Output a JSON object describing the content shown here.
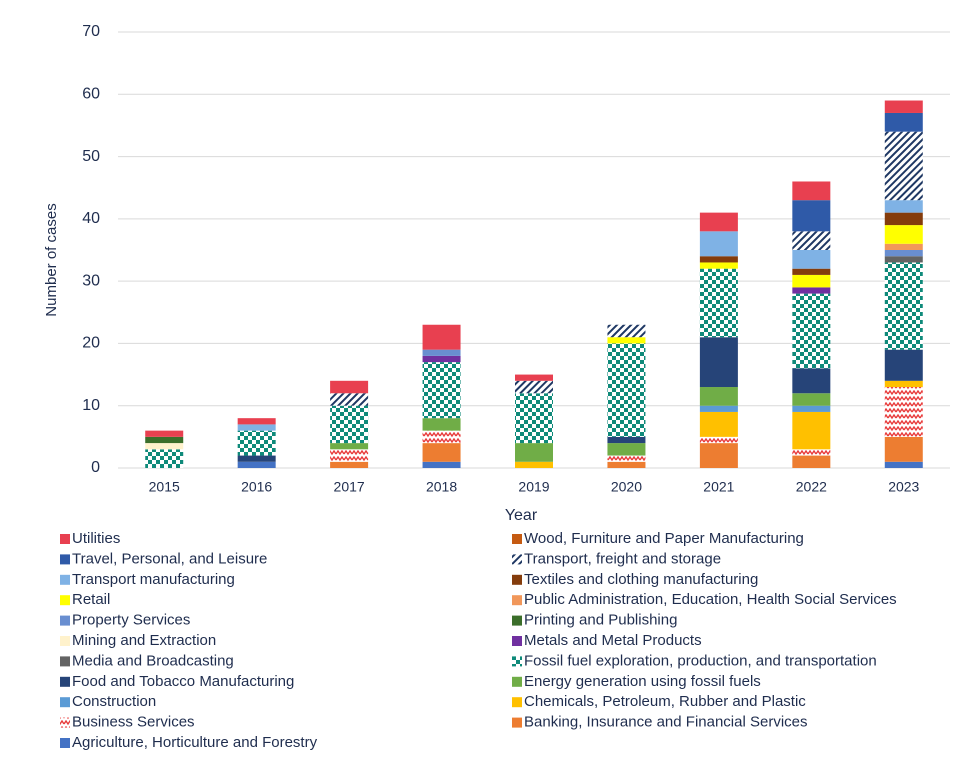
{
  "chart_data": {
    "type": "stacked_bar",
    "x_label": "Year",
    "y_label": "Number of cases",
    "categories": [
      "2015",
      "2016",
      "2017",
      "2018",
      "2019",
      "2020",
      "2021",
      "2022",
      "2023"
    ],
    "ylim": [
      0,
      70
    ],
    "yticks": [
      0,
      10,
      20,
      30,
      40,
      50,
      60,
      70
    ],
    "grid": true,
    "series": [
      {
        "name": "Agriculture, Horticulture and Forestry",
        "color": "#4472c4",
        "values": [
          0,
          1,
          0,
          1,
          0,
          0,
          0,
          0,
          1
        ]
      },
      {
        "name": "Banking, Insurance and Financial Services",
        "color": "#ed7d31",
        "values": [
          0,
          0,
          1,
          3,
          0,
          1,
          4,
          2,
          4
        ]
      },
      {
        "name": "Business Services",
        "color": "#e83a3a",
        "pattern": "zigzag",
        "values": [
          0,
          0,
          2,
          2,
          0,
          1,
          1,
          1,
          8
        ]
      },
      {
        "name": "Chemicals, Petroleum, Rubber and Plastic",
        "color": "#ffc000",
        "values": [
          0,
          0,
          0,
          0,
          1,
          0,
          4,
          6,
          1
        ]
      },
      {
        "name": "Construction",
        "color": "#5b9bd5",
        "values": [
          0,
          0,
          0,
          0,
          0,
          0,
          1,
          1,
          0
        ]
      },
      {
        "name": "Energy generation using fossil fuels",
        "color": "#70ad47",
        "values": [
          0,
          0,
          1,
          2,
          3,
          2,
          3,
          2,
          0
        ]
      },
      {
        "name": "Food and Tobacco Manufacturing",
        "color": "#264478",
        "values": [
          0,
          1,
          0,
          0,
          0,
          1,
          8,
          4,
          5
        ]
      },
      {
        "name": "Fossil fuel exploration, production, and transportation",
        "color": "#0f8a7a",
        "pattern": "checker",
        "values": [
          3,
          4,
          6,
          9,
          8,
          15,
          11,
          12,
          14
        ]
      },
      {
        "name": "Media and Broadcasting",
        "color": "#636363",
        "values": [
          0,
          0,
          0,
          0,
          0,
          0,
          0,
          0,
          1
        ]
      },
      {
        "name": "Metals and Metal Products",
        "color": "#7030a0",
        "values": [
          0,
          0,
          0,
          1,
          0,
          0,
          0,
          1,
          0
        ]
      },
      {
        "name": "Mining and Extraction",
        "color": "#fff2cc",
        "values": [
          1,
          0,
          0,
          0,
          0,
          0,
          0,
          0,
          0
        ]
      },
      {
        "name": "Printing and Publishing",
        "color": "#3b6e2a",
        "values": [
          1,
          0,
          0,
          0,
          0,
          0,
          0,
          0,
          0
        ]
      },
      {
        "name": "Property Services",
        "color": "#698ed0",
        "values": [
          0,
          0,
          0,
          1,
          0,
          0,
          0,
          0,
          1
        ]
      },
      {
        "name": "Public Administration, Education, Health Social Services",
        "color": "#f1975a",
        "values": [
          0,
          0,
          0,
          0,
          0,
          0,
          0,
          0,
          1
        ]
      },
      {
        "name": "Retail",
        "color": "#ffff00",
        "values": [
          0,
          0,
          0,
          0,
          0,
          1,
          1,
          2,
          3
        ]
      },
      {
        "name": "Textiles and clothing manufacturing",
        "color": "#843c0c",
        "values": [
          0,
          0,
          0,
          0,
          0,
          0,
          1,
          1,
          2
        ]
      },
      {
        "name": "Transport manufacturing",
        "color": "#7fb2e5",
        "values": [
          0,
          1,
          0,
          0,
          0,
          0,
          4,
          3,
          2
        ]
      },
      {
        "name": "Transport, freight and storage",
        "color": "#1f3864",
        "pattern": "hatch",
        "values": [
          0,
          0,
          2,
          0,
          2,
          2,
          0,
          3,
          11
        ]
      },
      {
        "name": "Travel, Personal, and Leisure",
        "color": "#2f5aa8",
        "values": [
          0,
          0,
          0,
          0,
          0,
          0,
          0,
          5,
          3
        ]
      },
      {
        "name": "Wood, Furniture and Paper Manufacturing",
        "color": "#c55a11",
        "values": [
          0,
          0,
          0,
          0,
          0,
          0,
          0,
          0,
          0
        ]
      },
      {
        "name": "Utilities",
        "color": "#e84050",
        "values": [
          1,
          1,
          2,
          4,
          1,
          0,
          3,
          3,
          2
        ]
      }
    ]
  }
}
